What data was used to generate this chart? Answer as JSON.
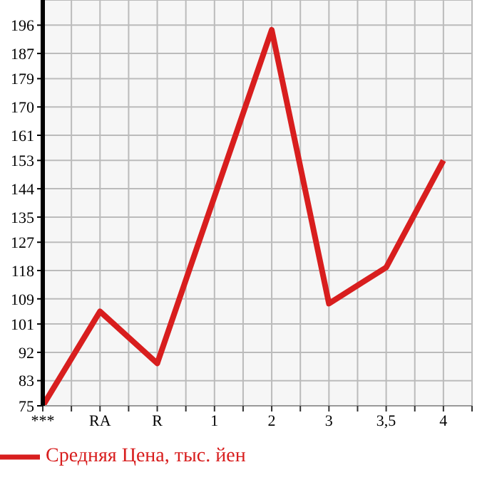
{
  "chart_data": {
    "type": "line",
    "categories": [
      "***",
      "RA",
      "R",
      "1",
      "2",
      "3",
      "3,5",
      "4"
    ],
    "series": [
      {
        "name": "Средняя Цена, тыс. йен",
        "color": "#d81e1e",
        "values": [
          75,
          105,
          88.5,
          141.5,
          194.5,
          107.5,
          119,
          153
        ]
      }
    ],
    "ylim": [
      75,
      204
    ],
    "yticks": [
      75,
      83,
      92,
      101,
      109,
      118,
      127,
      135,
      144,
      153,
      161,
      170,
      179,
      187,
      196
    ],
    "grid": true,
    "legend": "bottom left",
    "marker": "none",
    "line_style": "solid"
  }
}
